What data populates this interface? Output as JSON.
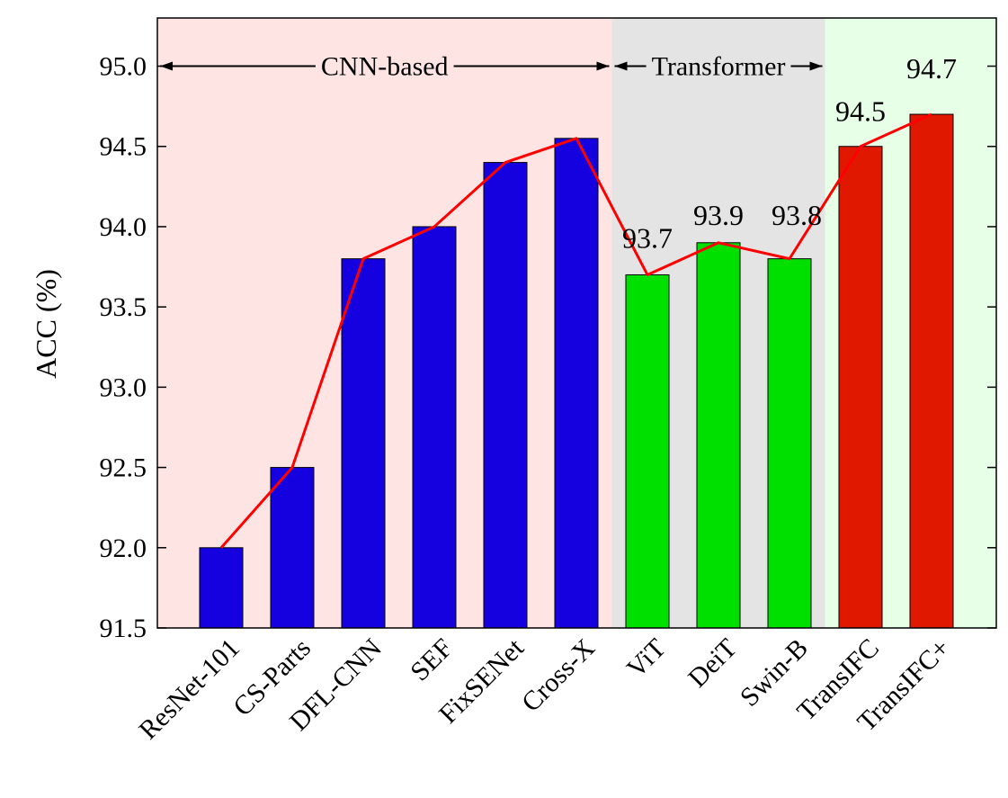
{
  "chart_data": {
    "type": "bar",
    "title": "",
    "xlabel": "",
    "ylabel": "ACC (%)",
    "ylim": [
      91.5,
      95.3
    ],
    "yticks": [
      91.5,
      92.0,
      92.5,
      93.0,
      93.5,
      94.0,
      94.5,
      95.0
    ],
    "ytick_labels": [
      "91.5",
      "92.0",
      "92.5",
      "93.0",
      "93.5",
      "94.0",
      "94.5",
      "95.0"
    ],
    "categories": [
      "ResNet-101",
      "CS-Parts",
      "DFL-CNN",
      "SEF",
      "FixSENet",
      "Cross-X",
      "ViT",
      "DeiT",
      "Swin-B",
      "TransIFC",
      "TransIFC+"
    ],
    "values": [
      92.0,
      92.5,
      93.8,
      94.0,
      94.4,
      94.55,
      93.7,
      93.9,
      93.8,
      94.5,
      94.7
    ],
    "bar_colors": [
      "#1500e0",
      "#1500e0",
      "#1500e0",
      "#1500e0",
      "#1500e0",
      "#1500e0",
      "#00e000",
      "#00e000",
      "#00e000",
      "#e01800",
      "#e01800"
    ],
    "data_labels": [
      {
        "index": 6,
        "text": "93.7"
      },
      {
        "index": 7,
        "text": "93.9"
      },
      {
        "index": 8,
        "text": "93.8"
      },
      {
        "index": 9,
        "text": "94.5"
      },
      {
        "index": 10,
        "text": "94.7"
      }
    ],
    "line": {
      "color": "#ff0000"
    },
    "groups": [
      {
        "label": "CNN-based",
        "start": 0,
        "end": 5,
        "background": "#ffe4e4"
      },
      {
        "label": "Transformer",
        "start": 6,
        "end": 8,
        "background": "#e4e4e4"
      },
      {
        "label": "",
        "start": 9,
        "end": 10,
        "background": "#e6ffe6"
      }
    ],
    "grid": false,
    "legend": "none"
  }
}
